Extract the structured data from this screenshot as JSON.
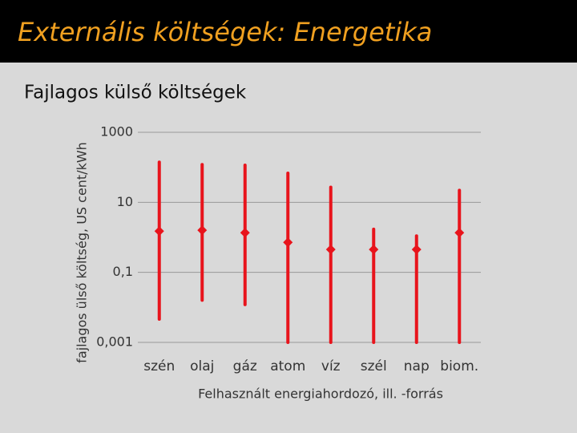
{
  "header": {
    "title": "Externális költségek: Energetika"
  },
  "subtitle": "Fajlagos külső költségek",
  "chart_data": {
    "type": "range",
    "ylabel": "fajlagos ülső költség, US cent/kWh",
    "xlabel": "Felhasznált energiahordozó, ill.  -forrás",
    "categories": [
      "szén",
      "olaj",
      "gáz",
      "atom",
      "víz",
      "szél",
      "nap",
      "biom."
    ],
    "values": [
      1.5,
      1.6,
      1.35,
      0.72,
      0.45,
      0.45,
      0.45,
      1.35
    ],
    "low": [
      0.0046,
      0.016,
      0.012,
      0.001,
      0.001,
      0.001,
      0.001,
      0.001
    ],
    "high": [
      140,
      120,
      115,
      68,
      27,
      1.7,
      1.1,
      22
    ],
    "color": "#e8141c",
    "log_scale": true,
    "ylim": [
      0.001,
      1000
    ],
    "yticks": [
      {
        "value": 0.001,
        "label": "0,001"
      },
      {
        "value": 0.1,
        "label": "0,1"
      },
      10,
      1000
    ],
    "grid": true
  }
}
